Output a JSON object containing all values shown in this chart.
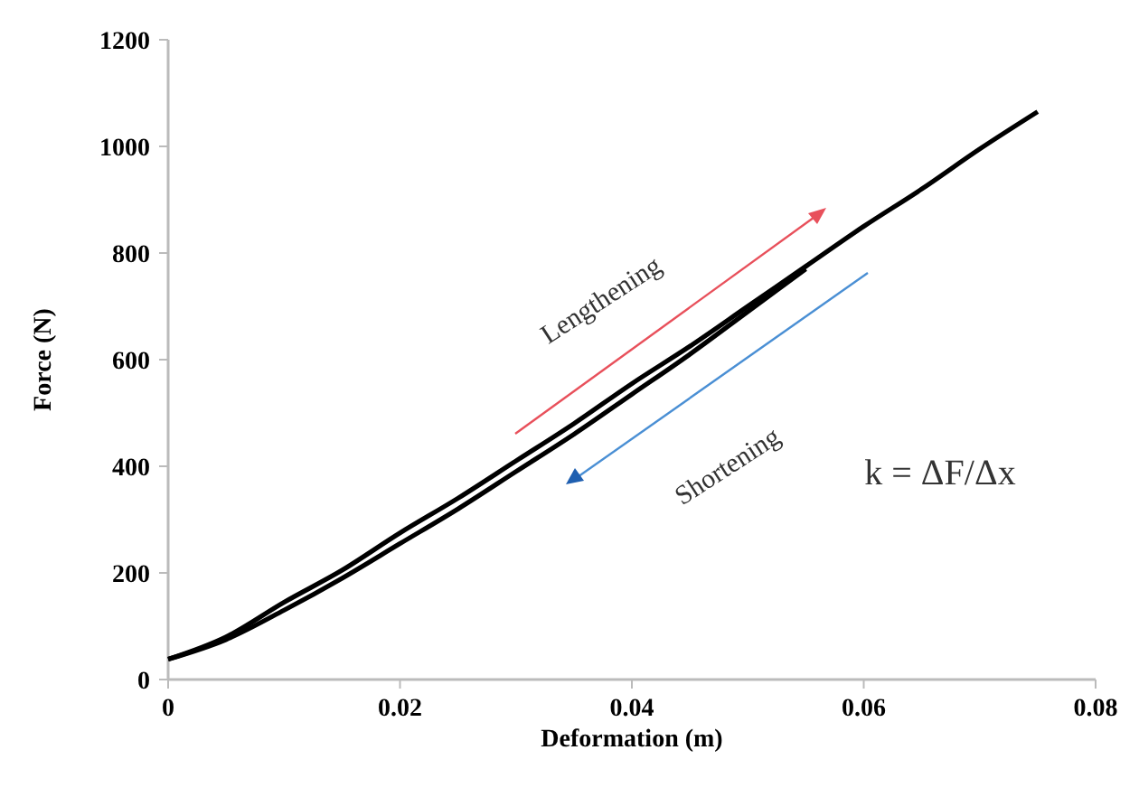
{
  "chart_data": {
    "type": "line",
    "xlabel": "Deformation (m)",
    "ylabel": "Force (N)",
    "xlim": [
      0,
      0.08
    ],
    "xticks": [
      0,
      0.02,
      0.04,
      0.06,
      0.08
    ],
    "ylim": [
      0,
      1200
    ],
    "yticks": [
      0,
      200,
      400,
      600,
      800,
      1000,
      1200
    ],
    "grid": false,
    "marker": "none",
    "line_style": "solid",
    "series": [
      {
        "color": "#000000",
        "x": [
          0,
          0.005,
          0.01,
          0.015,
          0.02,
          0.025,
          0.03,
          0.035,
          0.04,
          0.045,
          0.05,
          0.055,
          0.06,
          0.065,
          0.07,
          0.075
        ],
        "values": [
          38,
          80,
          145,
          205,
          275,
          340,
          410,
          480,
          555,
          625,
          700,
          775,
          850,
          920,
          995,
          1065
        ]
      },
      {
        "color": "#000000",
        "x": [
          0,
          0.005,
          0.01,
          0.015,
          0.02,
          0.025,
          0.03,
          0.035,
          0.04,
          0.045,
          0.05,
          0.055
        ],
        "values": [
          38,
          75,
          130,
          190,
          255,
          320,
          390,
          460,
          535,
          610,
          690,
          770
        ]
      }
    ],
    "annotations": [
      "Lengthening",
      "Shortening",
      "k = ΔF/Δx"
    ]
  }
}
